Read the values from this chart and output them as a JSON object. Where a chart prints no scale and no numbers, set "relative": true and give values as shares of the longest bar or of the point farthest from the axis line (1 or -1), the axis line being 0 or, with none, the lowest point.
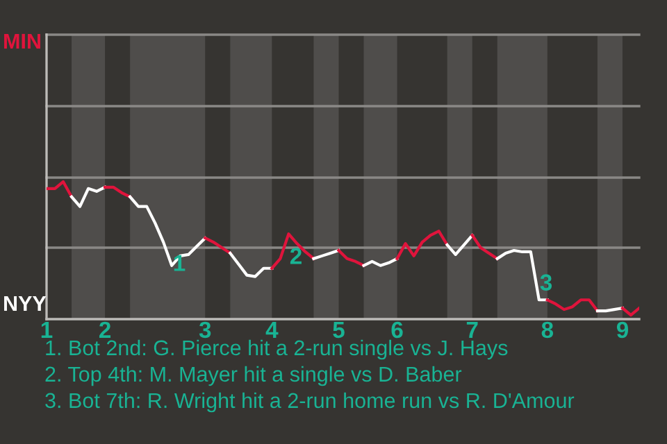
{
  "chart_data": {
    "type": "line",
    "relative": true,
    "categories": [
      "1",
      null,
      null,
      null,
      null,
      null,
      null,
      "2",
      null,
      null,
      null,
      null,
      null,
      null,
      null,
      null,
      null,
      null,
      null,
      "3",
      null,
      null,
      null,
      null,
      null,
      null,
      null,
      "4",
      null,
      null,
      null,
      null,
      null,
      null,
      null,
      "5",
      null,
      null,
      null,
      null,
      null,
      null,
      "6",
      null,
      null,
      null,
      null,
      null,
      null,
      null,
      null,
      "7",
      null,
      null,
      null,
      null,
      null,
      null,
      null,
      null,
      "8",
      null,
      null,
      null,
      null,
      null,
      null,
      null,
      null,
      "9",
      null,
      null
    ],
    "ref_lines": [
      {
        "axis": "y",
        "value": 0.52,
        "color": "#8a8886"
      },
      {
        "axis": "y",
        "value": 1.03,
        "color": "#8a8886"
      },
      {
        "axis": "y",
        "value": 1.55,
        "color": "#8a8886"
      },
      {
        "axis": "y",
        "value": 2.07,
        "color": "#8a8886"
      }
    ],
    "series": [
      {
        "color": "#e0143c",
        "values": [
          0.95,
          0.95,
          1,
          0.89,
          null,
          null,
          null,
          null,
          null,
          null,
          null,
          null,
          null,
          null,
          null,
          null,
          null,
          null,
          null,
          null,
          null,
          null,
          null,
          null,
          null,
          null,
          null,
          null,
          null,
          null,
          null,
          null,
          null,
          null,
          null,
          null,
          null,
          null,
          null,
          null,
          null,
          null,
          null,
          null,
          null,
          null,
          null,
          null,
          null,
          null,
          null,
          null,
          null,
          null,
          null,
          null,
          null,
          null,
          null,
          null,
          null,
          null,
          null,
          null,
          null,
          null,
          null,
          null,
          null,
          null,
          null,
          null
        ]
      },
      {
        "color": "#ffffff",
        "values": [
          null,
          null,
          null,
          0.89,
          0.82,
          0.95,
          0.93,
          0.96,
          null,
          null,
          null,
          null,
          null,
          null,
          null,
          null,
          null,
          null,
          null,
          null,
          null,
          null,
          null,
          null,
          null,
          null,
          null,
          null,
          null,
          null,
          null,
          null,
          null,
          null,
          null,
          null,
          null,
          null,
          null,
          null,
          null,
          null,
          null,
          null,
          null,
          null,
          null,
          null,
          null,
          null,
          null,
          null,
          null,
          null,
          null,
          null,
          null,
          null,
          null,
          null,
          null,
          null,
          null,
          null,
          null,
          null,
          null,
          null,
          null,
          null,
          null,
          null
        ]
      },
      {
        "color": "#e0143c",
        "values": [
          null,
          null,
          null,
          null,
          null,
          null,
          null,
          0.96,
          0.96,
          0.92,
          0.89,
          null,
          null,
          null,
          null,
          null,
          null,
          null,
          null,
          null,
          null,
          null,
          null,
          null,
          null,
          null,
          null,
          null,
          null,
          null,
          null,
          null,
          null,
          null,
          null,
          null,
          null,
          null,
          null,
          null,
          null,
          null,
          null,
          null,
          null,
          null,
          null,
          null,
          null,
          null,
          null,
          null,
          null,
          null,
          null,
          null,
          null,
          null,
          null,
          null,
          null,
          null,
          null,
          null,
          null,
          null,
          null,
          null,
          null,
          null,
          null,
          null
        ]
      },
      {
        "color": "#ffffff",
        "values": [
          null,
          null,
          null,
          null,
          null,
          null,
          null,
          null,
          null,
          null,
          0.89,
          0.82,
          0.82,
          0.7,
          0.56,
          0.39,
          0.46,
          0.47,
          0.53,
          0.59,
          null,
          null,
          null,
          null,
          null,
          null,
          null,
          null,
          null,
          null,
          null,
          null,
          null,
          null,
          null,
          null,
          null,
          null,
          null,
          null,
          null,
          null,
          null,
          null,
          null,
          null,
          null,
          null,
          null,
          null,
          null,
          null,
          null,
          null,
          null,
          null,
          null,
          null,
          null,
          null,
          null,
          null,
          null,
          null,
          null,
          null,
          null,
          null,
          null,
          null,
          null,
          null
        ]
      },
      {
        "color": "#e0143c",
        "values": [
          null,
          null,
          null,
          null,
          null,
          null,
          null,
          null,
          null,
          null,
          null,
          null,
          null,
          null,
          null,
          null,
          null,
          null,
          null,
          0.59,
          0.56,
          0.52,
          0.48,
          null,
          null,
          null,
          null,
          null,
          null,
          null,
          null,
          null,
          null,
          null,
          null,
          null,
          null,
          null,
          null,
          null,
          null,
          null,
          null,
          null,
          null,
          null,
          null,
          null,
          null,
          null,
          null,
          null,
          null,
          null,
          null,
          null,
          null,
          null,
          null,
          null,
          null,
          null,
          null,
          null,
          null,
          null,
          null,
          null,
          null,
          null,
          null,
          null
        ]
      },
      {
        "color": "#ffffff",
        "values": [
          null,
          null,
          null,
          null,
          null,
          null,
          null,
          null,
          null,
          null,
          null,
          null,
          null,
          null,
          null,
          null,
          null,
          null,
          null,
          null,
          null,
          null,
          0.48,
          0.4,
          0.32,
          0.31,
          0.37,
          0.37,
          null,
          null,
          null,
          null,
          null,
          null,
          null,
          null,
          null,
          null,
          null,
          null,
          null,
          null,
          null,
          null,
          null,
          null,
          null,
          null,
          null,
          null,
          null,
          null,
          null,
          null,
          null,
          null,
          null,
          null,
          null,
          null,
          null,
          null,
          null,
          null,
          null,
          null,
          null,
          null,
          null,
          null,
          null,
          null
        ]
      },
      {
        "color": "#e0143c",
        "values": [
          null,
          null,
          null,
          null,
          null,
          null,
          null,
          null,
          null,
          null,
          null,
          null,
          null,
          null,
          null,
          null,
          null,
          null,
          null,
          null,
          null,
          null,
          null,
          null,
          null,
          null,
          null,
          0.37,
          0.44,
          0.62,
          0.55,
          0.49,
          0.44,
          null,
          null,
          null,
          null,
          null,
          null,
          null,
          null,
          null,
          null,
          null,
          null,
          null,
          null,
          null,
          null,
          null,
          null,
          null,
          null,
          null,
          null,
          null,
          null,
          null,
          null,
          null,
          null,
          null,
          null,
          null,
          null,
          null,
          null,
          null,
          null,
          null,
          null,
          null
        ]
      },
      {
        "color": "#ffffff",
        "values": [
          null,
          null,
          null,
          null,
          null,
          null,
          null,
          null,
          null,
          null,
          null,
          null,
          null,
          null,
          null,
          null,
          null,
          null,
          null,
          null,
          null,
          null,
          null,
          null,
          null,
          null,
          null,
          null,
          null,
          null,
          null,
          null,
          0.44,
          0.46,
          0.48,
          0.5,
          null,
          null,
          null,
          null,
          null,
          null,
          null,
          null,
          null,
          null,
          null,
          null,
          null,
          null,
          null,
          null,
          null,
          null,
          null,
          null,
          null,
          null,
          null,
          null,
          null,
          null,
          null,
          null,
          null,
          null,
          null,
          null,
          null,
          null,
          null,
          null
        ]
      },
      {
        "color": "#e0143c",
        "values": [
          null,
          null,
          null,
          null,
          null,
          null,
          null,
          null,
          null,
          null,
          null,
          null,
          null,
          null,
          null,
          null,
          null,
          null,
          null,
          null,
          null,
          null,
          null,
          null,
          null,
          null,
          null,
          null,
          null,
          null,
          null,
          null,
          null,
          null,
          null,
          0.5,
          0.44,
          0.42,
          0.39,
          null,
          null,
          null,
          null,
          null,
          null,
          null,
          null,
          null,
          null,
          null,
          null,
          null,
          null,
          null,
          null,
          null,
          null,
          null,
          null,
          null,
          null,
          null,
          null,
          null,
          null,
          null,
          null,
          null,
          null,
          null,
          null,
          null
        ]
      },
      {
        "color": "#ffffff",
        "values": [
          null,
          null,
          null,
          null,
          null,
          null,
          null,
          null,
          null,
          null,
          null,
          null,
          null,
          null,
          null,
          null,
          null,
          null,
          null,
          null,
          null,
          null,
          null,
          null,
          null,
          null,
          null,
          null,
          null,
          null,
          null,
          null,
          null,
          null,
          null,
          null,
          null,
          null,
          0.39,
          0.42,
          0.39,
          0.41,
          0.44,
          null,
          null,
          null,
          null,
          null,
          null,
          null,
          null,
          null,
          null,
          null,
          null,
          null,
          null,
          null,
          null,
          null,
          null,
          null,
          null,
          null,
          null,
          null,
          null,
          null,
          null,
          null,
          null,
          null
        ]
      },
      {
        "color": "#e0143c",
        "values": [
          null,
          null,
          null,
          null,
          null,
          null,
          null,
          null,
          null,
          null,
          null,
          null,
          null,
          null,
          null,
          null,
          null,
          null,
          null,
          null,
          null,
          null,
          null,
          null,
          null,
          null,
          null,
          null,
          null,
          null,
          null,
          null,
          null,
          null,
          null,
          null,
          null,
          null,
          null,
          null,
          null,
          null,
          0.44,
          0.55,
          0.46,
          0.56,
          0.61,
          0.64,
          0.54,
          null,
          null,
          null,
          null,
          null,
          null,
          null,
          null,
          null,
          null,
          null,
          null,
          null,
          null,
          null,
          null,
          null,
          null,
          null,
          null,
          null,
          null,
          null
        ]
      },
      {
        "color": "#ffffff",
        "values": [
          null,
          null,
          null,
          null,
          null,
          null,
          null,
          null,
          null,
          null,
          null,
          null,
          null,
          null,
          null,
          null,
          null,
          null,
          null,
          null,
          null,
          null,
          null,
          null,
          null,
          null,
          null,
          null,
          null,
          null,
          null,
          null,
          null,
          null,
          null,
          null,
          null,
          null,
          null,
          null,
          null,
          null,
          null,
          null,
          null,
          null,
          null,
          null,
          0.54,
          0.47,
          0.54,
          0.61,
          null,
          null,
          null,
          null,
          null,
          null,
          null,
          null,
          null,
          null,
          null,
          null,
          null,
          null,
          null,
          null,
          null,
          null,
          null,
          null
        ]
      },
      {
        "color": "#e0143c",
        "values": [
          null,
          null,
          null,
          null,
          null,
          null,
          null,
          null,
          null,
          null,
          null,
          null,
          null,
          null,
          null,
          null,
          null,
          null,
          null,
          null,
          null,
          null,
          null,
          null,
          null,
          null,
          null,
          null,
          null,
          null,
          null,
          null,
          null,
          null,
          null,
          null,
          null,
          null,
          null,
          null,
          null,
          null,
          null,
          null,
          null,
          null,
          null,
          null,
          null,
          null,
          null,
          0.61,
          0.52,
          0.48,
          0.44,
          null,
          null,
          null,
          null,
          null,
          null,
          null,
          null,
          null,
          null,
          null,
          null,
          null,
          null,
          null,
          null,
          null
        ]
      },
      {
        "color": "#ffffff",
        "values": [
          null,
          null,
          null,
          null,
          null,
          null,
          null,
          null,
          null,
          null,
          null,
          null,
          null,
          null,
          null,
          null,
          null,
          null,
          null,
          null,
          null,
          null,
          null,
          null,
          null,
          null,
          null,
          null,
          null,
          null,
          null,
          null,
          null,
          null,
          null,
          null,
          null,
          null,
          null,
          null,
          null,
          null,
          null,
          null,
          null,
          null,
          null,
          null,
          null,
          null,
          null,
          null,
          null,
          null,
          0.44,
          0.48,
          0.5,
          0.49,
          0.49,
          0.14,
          0.14,
          null,
          null,
          null,
          null,
          null,
          null,
          null,
          null,
          null,
          null,
          null
        ]
      },
      {
        "color": "#e0143c",
        "values": [
          null,
          null,
          null,
          null,
          null,
          null,
          null,
          null,
          null,
          null,
          null,
          null,
          null,
          null,
          null,
          null,
          null,
          null,
          null,
          null,
          null,
          null,
          null,
          null,
          null,
          null,
          null,
          null,
          null,
          null,
          null,
          null,
          null,
          null,
          null,
          null,
          null,
          null,
          null,
          null,
          null,
          null,
          null,
          null,
          null,
          null,
          null,
          null,
          null,
          null,
          null,
          null,
          null,
          null,
          null,
          null,
          null,
          null,
          null,
          null,
          0.14,
          0.11,
          0.07,
          0.09,
          0.14,
          0.14,
          0.06,
          null,
          null,
          null,
          null,
          null
        ]
      },
      {
        "color": "#ffffff",
        "values": [
          null,
          null,
          null,
          null,
          null,
          null,
          null,
          null,
          null,
          null,
          null,
          null,
          null,
          null,
          null,
          null,
          null,
          null,
          null,
          null,
          null,
          null,
          null,
          null,
          null,
          null,
          null,
          null,
          null,
          null,
          null,
          null,
          null,
          null,
          null,
          null,
          null,
          null,
          null,
          null,
          null,
          null,
          null,
          null,
          null,
          null,
          null,
          null,
          null,
          null,
          null,
          null,
          null,
          null,
          null,
          null,
          null,
          null,
          null,
          null,
          null,
          null,
          null,
          null,
          null,
          null,
          0.06,
          0.06,
          0.07,
          0.08,
          null,
          null
        ]
      },
      {
        "color": "#e0143c",
        "values": [
          null,
          null,
          null,
          null,
          null,
          null,
          null,
          null,
          null,
          null,
          null,
          null,
          null,
          null,
          null,
          null,
          null,
          null,
          null,
          null,
          null,
          null,
          null,
          null,
          null,
          null,
          null,
          null,
          null,
          null,
          null,
          null,
          null,
          null,
          null,
          null,
          null,
          null,
          null,
          null,
          null,
          null,
          null,
          null,
          null,
          null,
          null,
          null,
          null,
          null,
          null,
          null,
          null,
          null,
          null,
          null,
          null,
          null,
          null,
          null,
          null,
          null,
          null,
          null,
          null,
          null,
          null,
          null,
          null,
          0.08,
          0.03,
          0.08
        ]
      }
    ],
    "annotations": [
      "MIN",
      "NYY",
      "1",
      "2",
      "3",
      "1. Bot 2nd: G. Pierce hit a 2-run single vs J. Hays",
      "2. Top 4th: M. Mayer hit a single vs D. Baber",
      "3. Bot 7th: R. Wright hit a 2-run home run vs R. D'Amour"
    ]
  }
}
